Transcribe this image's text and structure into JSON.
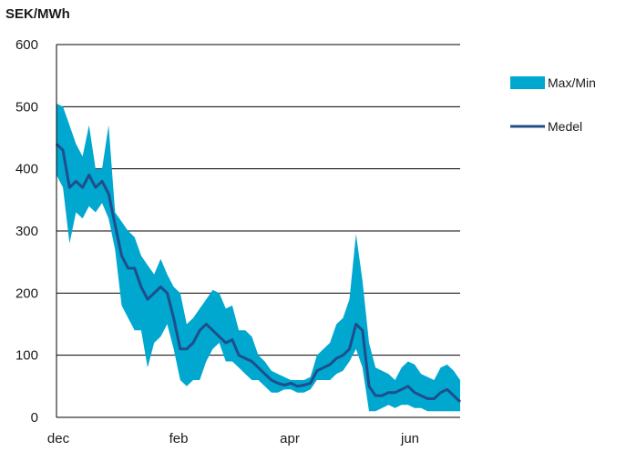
{
  "chart_data": {
    "type": "area",
    "unit_label": "SEK/MWh",
    "ylim": [
      0,
      600
    ],
    "y_ticks": [
      "0",
      "100",
      "200",
      "300",
      "400",
      "500",
      "600"
    ],
    "x_ticks": [
      "dec",
      "feb",
      "apr",
      "jun"
    ],
    "grid": "horizontal",
    "legend": {
      "position": "right",
      "items": [
        "Max/Min",
        "Medel"
      ]
    },
    "colors": {
      "band": "#00a7cf",
      "line": "#1f4e8c",
      "grid": "#000000"
    },
    "x": [
      "dec",
      "",
      "",
      "",
      "",
      "",
      "",
      "",
      "",
      "",
      "",
      "",
      "",
      "",
      "",
      "",
      "",
      "",
      "feb",
      "",
      "",
      "",
      "",
      "",
      "",
      "",
      "",
      "",
      "",
      "",
      "",
      "",
      "",
      "",
      "",
      "",
      "apr",
      "",
      "",
      "",
      "",
      "",
      "",
      "",
      "",
      "",
      "",
      "",
      "",
      "",
      "",
      "",
      "",
      "",
      "jun",
      "",
      "",
      "",
      "",
      "",
      "",
      "",
      ""
    ],
    "series": [
      {
        "name": "Max/Min",
        "max": [
          505,
          500,
          470,
          440,
          420,
          470,
          400,
          400,
          470,
          330,
          315,
          300,
          290,
          260,
          245,
          230,
          255,
          230,
          210,
          200,
          150,
          160,
          175,
          190,
          205,
          200,
          175,
          180,
          140,
          140,
          130,
          100,
          90,
          75,
          70,
          65,
          60,
          60,
          60,
          65,
          100,
          110,
          120,
          150,
          160,
          190,
          295,
          220,
          120,
          80,
          75,
          70,
          60,
          80,
          90,
          85,
          70,
          65,
          60,
          80,
          85,
          75,
          60
        ],
        "min": [
          390,
          370,
          280,
          330,
          320,
          340,
          330,
          345,
          320,
          270,
          180,
          160,
          140,
          140,
          80,
          120,
          130,
          150,
          110,
          60,
          50,
          60,
          60,
          90,
          110,
          120,
          90,
          90,
          80,
          70,
          60,
          60,
          50,
          40,
          40,
          45,
          45,
          40,
          40,
          45,
          60,
          60,
          60,
          70,
          75,
          90,
          110,
          80,
          10,
          10,
          15,
          20,
          15,
          20,
          20,
          15,
          15,
          10,
          10,
          10,
          10,
          10,
          10
        ]
      },
      {
        "name": "Medel",
        "values": [
          440,
          430,
          370,
          380,
          370,
          390,
          370,
          380,
          360,
          310,
          260,
          240,
          240,
          210,
          190,
          200,
          210,
          200,
          160,
          110,
          110,
          120,
          140,
          150,
          140,
          130,
          120,
          125,
          100,
          95,
          90,
          80,
          70,
          60,
          55,
          52,
          55,
          50,
          52,
          55,
          75,
          80,
          85,
          95,
          100,
          110,
          150,
          140,
          50,
          35,
          35,
          40,
          40,
          45,
          50,
          40,
          35,
          30,
          30,
          40,
          45,
          35,
          25
        ]
      }
    ]
  }
}
